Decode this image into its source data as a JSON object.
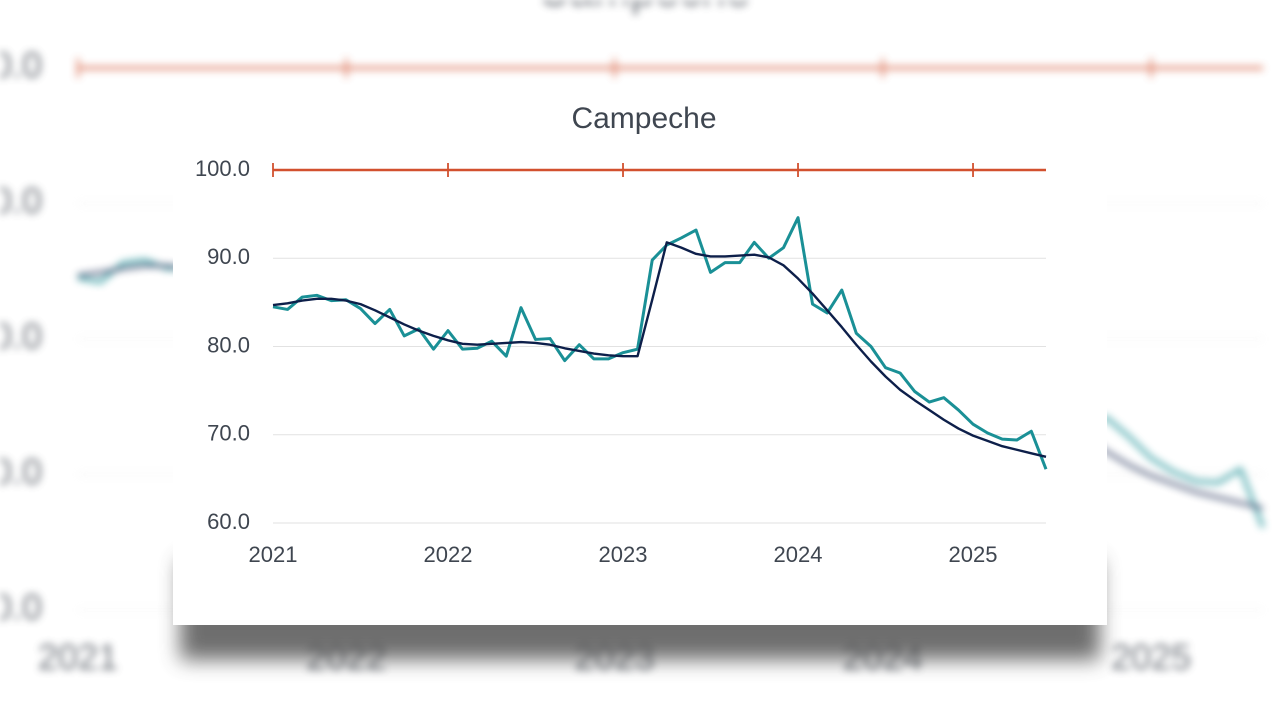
{
  "chart_data": {
    "type": "line",
    "title": "Campeche",
    "x": [
      2021,
      2021.083,
      2021.167,
      2021.25,
      2021.333,
      2021.417,
      2021.5,
      2021.583,
      2021.667,
      2021.75,
      2021.833,
      2021.917,
      2022,
      2022.083,
      2022.167,
      2022.25,
      2022.333,
      2022.417,
      2022.5,
      2022.583,
      2022.667,
      2022.75,
      2022.833,
      2022.917,
      2023,
      2023.083,
      2023.167,
      2023.25,
      2023.333,
      2023.417,
      2023.5,
      2023.583,
      2023.667,
      2023.75,
      2023.833,
      2023.917,
      2024,
      2024.083,
      2024.167,
      2024.25,
      2024.333,
      2024.417,
      2024.5,
      2024.583,
      2024.667,
      2024.75,
      2024.833,
      2024.917,
      2025,
      2025.083,
      2025.167,
      2025.25,
      2025.333,
      2025.417
    ],
    "series": [
      {
        "color": "#1a9096",
        "values": [
          84.5,
          84.2,
          85.6,
          85.8,
          85.2,
          85.3,
          84.3,
          82.6,
          84.2,
          81.2,
          82.0,
          79.7,
          81.8,
          79.7,
          79.8,
          80.6,
          78.9,
          84.4,
          80.8,
          80.9,
          78.4,
          80.2,
          78.6,
          78.6,
          79.3,
          79.7,
          89.8,
          91.5,
          92.3,
          93.2,
          88.4,
          89.5,
          89.5,
          91.8,
          90.0,
          91.2,
          94.6,
          84.8,
          83.8,
          86.4,
          81.5,
          80.0,
          77.6,
          77.0,
          74.9,
          73.7,
          74.2,
          72.8,
          71.2,
          70.2,
          69.5,
          69.4,
          70.4,
          66.1
        ]
      },
      {
        "color": "#0d1f4a",
        "values": [
          84.7,
          84.9,
          85.2,
          85.4,
          85.4,
          85.2,
          84.8,
          84.1,
          83.3,
          82.5,
          81.8,
          81.2,
          80.7,
          80.3,
          80.2,
          80.3,
          80.4,
          80.5,
          80.4,
          80.2,
          79.8,
          79.5,
          79.2,
          79.0,
          78.9,
          78.9,
          85.3,
          91.8,
          91.2,
          90.5,
          90.2,
          90.2,
          90.3,
          90.4,
          90.1,
          89.2,
          87.7,
          86.0,
          84.1,
          82.2,
          80.2,
          78.3,
          76.6,
          75.1,
          73.9,
          72.8,
          71.7,
          70.7,
          69.9,
          69.3,
          68.7,
          68.3,
          67.9,
          67.5
        ]
      }
    ],
    "xlim": [
      2021,
      2025.417
    ],
    "xticks": [
      2021,
      2022,
      2023,
      2024,
      2025
    ],
    "ylim": [
      60,
      100
    ],
    "yticks": [
      {
        "value": 60,
        "label": "60.0"
      },
      {
        "value": 70,
        "label": "70.0"
      },
      {
        "value": 80,
        "label": "80.0"
      },
      {
        "value": 90,
        "label": "90.0"
      },
      {
        "value": 100,
        "label": "100.0"
      }
    ],
    "grid": true,
    "reference_line": {
      "value": 100,
      "color": "#d2502e"
    }
  }
}
